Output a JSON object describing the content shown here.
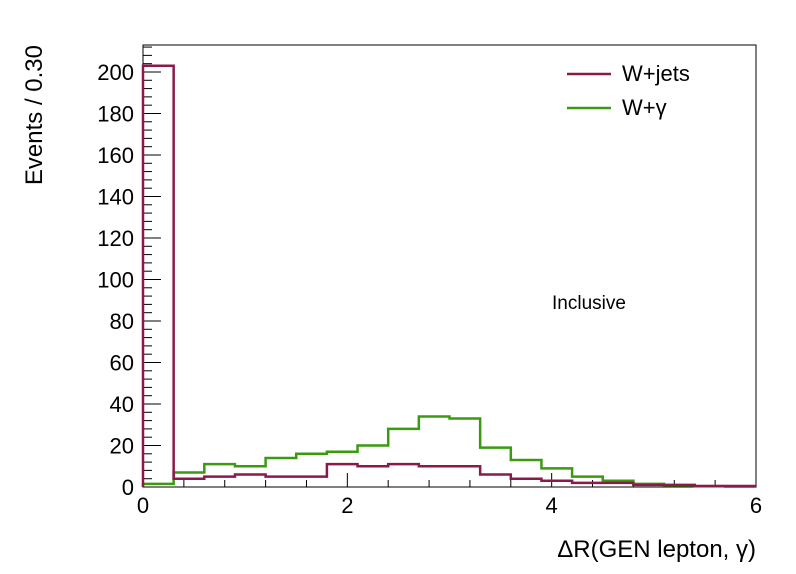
{
  "chart_data": {
    "type": "histogram-step",
    "xlabel": "ΔR(GEN lepton, γ)",
    "ylabel": "Events / 0.30",
    "xlim": [
      0,
      6
    ],
    "ylim": [
      0,
      213
    ],
    "bin_width": 0.3,
    "x_ticks": [
      0,
      2,
      4,
      6
    ],
    "y_ticks": [
      0,
      20,
      40,
      60,
      80,
      100,
      120,
      140,
      160,
      180,
      200
    ],
    "annotation": "Inclusive",
    "legend_position": "top-right",
    "grid": false,
    "series": [
      {
        "name": "W+jets",
        "color": "#8b1a4a",
        "values": [
          203,
          4,
          5,
          6,
          5,
          5,
          11,
          10,
          11,
          10,
          10,
          6,
          4,
          3,
          2,
          2,
          1,
          1,
          0.5,
          0.5
        ]
      },
      {
        "name": "W+γ",
        "color": "#3a9a10",
        "values": [
          1.5,
          7,
          11,
          10,
          14,
          16,
          17,
          20,
          28,
          34,
          33,
          19,
          13,
          9,
          5,
          3,
          1.5,
          0.8,
          0.4,
          0.2
        ]
      }
    ]
  }
}
